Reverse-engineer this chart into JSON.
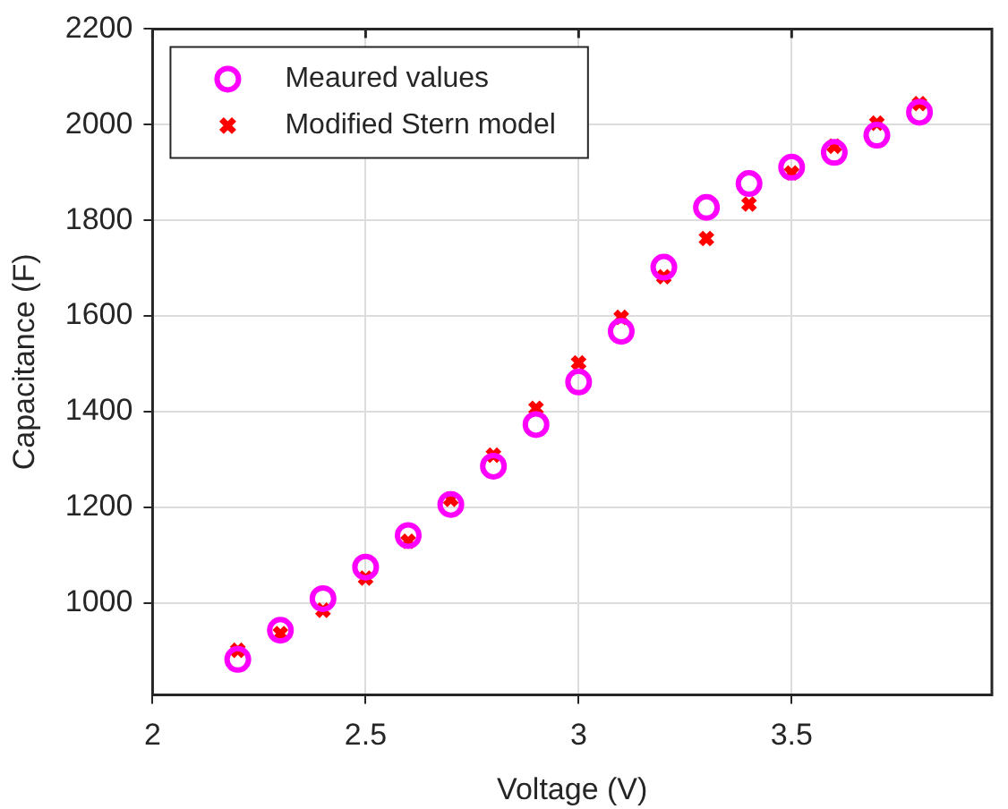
{
  "chart_data": {
    "type": "scatter",
    "xlabel": "Voltage (V)",
    "ylabel": "Capacitance (F)",
    "x": [
      2.2,
      2.3,
      2.4,
      2.5,
      2.6,
      2.7,
      2.8,
      2.9,
      3.0,
      3.1,
      3.2,
      3.3,
      3.4,
      3.5,
      3.6,
      3.7,
      3.8
    ],
    "series": [
      {
        "name": "Meaured values",
        "color": "#ff00ff",
        "marker": "circle",
        "values": [
          882,
          943,
          1009,
          1075,
          1141,
          1206,
          1286,
          1373,
          1462,
          1568,
          1702,
          1827,
          1877,
          1911,
          1942,
          1978,
          2026
        ]
      },
      {
        "name": "Modified Stern model",
        "color": "#ff0000",
        "marker": "cross",
        "values": [
          901,
          936,
          985,
          1052,
          1129,
          1217,
          1309,
          1407,
          1502,
          1597,
          1682,
          1762,
          1834,
          1899,
          1955,
          2003,
          2044
        ]
      }
    ],
    "xlim": [
      2,
      3.97
    ],
    "xticks": [
      2,
      2.5,
      3,
      3.5
    ],
    "ylim": [
      808,
      2200
    ],
    "yticks": [
      1000,
      1200,
      1400,
      1600,
      1800,
      2000,
      2200
    ],
    "grid": true,
    "legend": "top left"
  }
}
